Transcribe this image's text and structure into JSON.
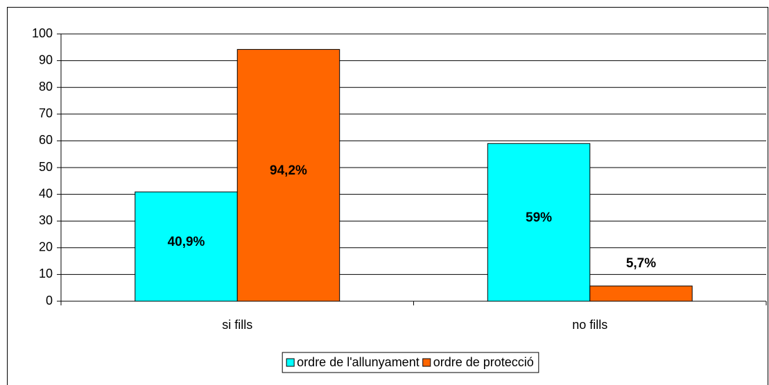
{
  "chart_data": {
    "type": "bar",
    "categories": [
      "si fills",
      "no fills"
    ],
    "series": [
      {
        "name": "ordre de l'allunyament",
        "color": "#00ffff",
        "values": [
          40.9,
          59
        ],
        "value_labels": [
          "40,9%",
          "59%"
        ]
      },
      {
        "name": "ordre de protecció",
        "color": "#ff6600",
        "values": [
          94.2,
          5.7
        ],
        "value_labels": [
          "94,2%",
          "5,7%"
        ]
      }
    ],
    "ylim": [
      0,
      100
    ],
    "yticks": [
      0,
      10,
      20,
      30,
      40,
      50,
      60,
      70,
      80,
      90,
      100
    ],
    "grid": true,
    "legend": "bottom"
  }
}
